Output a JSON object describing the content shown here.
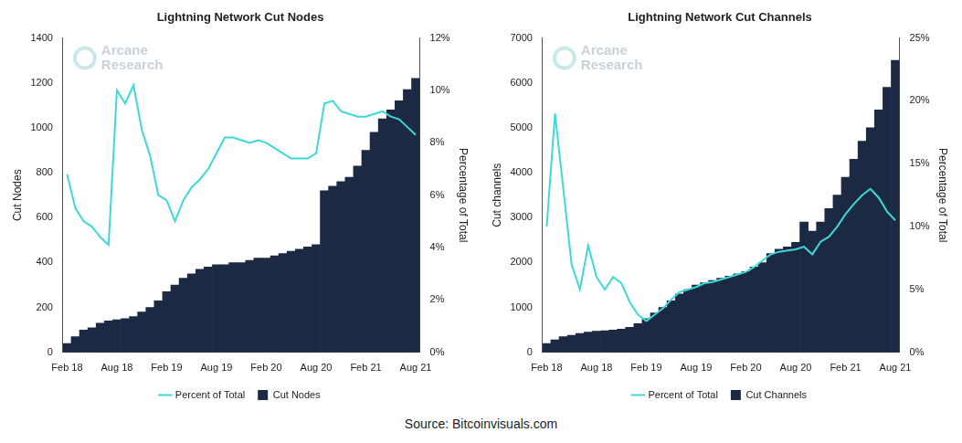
{
  "chart_data": [
    {
      "type": "bar",
      "title": "Lightning Network Cut Nodes",
      "annotations": [
        "Arcane Research"
      ],
      "categories": [
        "Feb 18",
        null,
        null,
        null,
        null,
        null,
        "Aug 18",
        null,
        null,
        null,
        null,
        null,
        "Feb 19",
        null,
        null,
        null,
        null,
        null,
        "Aug 19",
        null,
        null,
        null,
        null,
        null,
        "Feb 20",
        null,
        null,
        null,
        null,
        null,
        "Aug 20",
        null,
        null,
        null,
        null,
        null,
        "Feb 21",
        null,
        null,
        null,
        null,
        null,
        "Aug 21"
      ],
      "y_label": "Cut Nodes",
      "y2_label": "Percentage of Total",
      "series": [
        {
          "name": "Cut Nodes",
          "type": "bar",
          "color": "#1b2a42",
          "values": [
            40,
            70,
            100,
            110,
            130,
            140,
            145,
            150,
            160,
            180,
            200,
            230,
            270,
            300,
            330,
            350,
            370,
            380,
            390,
            390,
            400,
            400,
            410,
            420,
            420,
            430,
            440,
            450,
            460,
            470,
            480,
            720,
            740,
            760,
            780,
            830,
            900,
            980,
            1040,
            1080,
            1120,
            1170,
            1220
          ]
        },
        {
          "name": "Percent of Total",
          "type": "line",
          "axis": "y2",
          "color": "#3fd8d8",
          "values": [
            6.8,
            5.5,
            5.0,
            4.8,
            4.4,
            4.1,
            10.0,
            9.5,
            10.2,
            8.5,
            7.5,
            6.0,
            5.8,
            5.0,
            5.8,
            6.3,
            6.6,
            7.0,
            7.6,
            8.2,
            8.2,
            8.1,
            8.0,
            8.1,
            8.0,
            7.8,
            7.6,
            7.4,
            7.4,
            7.4,
            7.6,
            9.5,
            9.6,
            9.2,
            9.1,
            9.0,
            9.0,
            9.1,
            9.2,
            9.0,
            8.9,
            8.6,
            8.3
          ]
        }
      ],
      "ylim": [
        0,
        1400
      ],
      "yticks": [
        0,
        200,
        400,
        600,
        800,
        1000,
        1200,
        1400
      ],
      "y2lim": [
        0,
        12
      ],
      "y2ticks": [
        {
          "value": 0,
          "label": "0%"
        },
        {
          "value": 2,
          "label": "2%"
        },
        {
          "value": 4,
          "label": "4%"
        },
        {
          "value": 6,
          "label": "6%"
        },
        {
          "value": 8,
          "label": "8%"
        },
        {
          "value": 10,
          "label": "10%"
        },
        {
          "value": 12,
          "label": "12%"
        }
      ],
      "grid": false,
      "legend": "bottom"
    },
    {
      "type": "bar",
      "title": "Lightning Network Cut Channels",
      "annotations": [
        "Arcane Research"
      ],
      "categories": [
        "Feb 18",
        null,
        null,
        null,
        null,
        null,
        "Aug 18",
        null,
        null,
        null,
        null,
        null,
        "Feb 19",
        null,
        null,
        null,
        null,
        null,
        "Aug 19",
        null,
        null,
        null,
        null,
        null,
        "Feb 20",
        null,
        null,
        null,
        null,
        null,
        "Aug 20",
        null,
        null,
        null,
        null,
        null,
        "Feb 21",
        null,
        null,
        null,
        null,
        null,
        "Aug 21"
      ],
      "y_label": "Cut channels",
      "y2_label": "Percentage of Total",
      "series": [
        {
          "name": "Cut Channels",
          "type": "bar",
          "color": "#1b2a42",
          "values": [
            200,
            280,
            350,
            380,
            420,
            450,
            470,
            480,
            500,
            520,
            560,
            640,
            750,
            880,
            1000,
            1150,
            1300,
            1400,
            1500,
            1550,
            1600,
            1650,
            1700,
            1750,
            1800,
            1900,
            2000,
            2200,
            2300,
            2350,
            2450,
            2900,
            2700,
            2900,
            3200,
            3500,
            3900,
            4300,
            4700,
            5000,
            5400,
            5900,
            6500
          ]
        },
        {
          "name": "Percent of Total",
          "type": "line",
          "axis": "y2",
          "color": "#3fd8d8",
          "values": [
            10,
            19,
            13,
            7,
            5,
            8.5,
            6,
            5,
            6,
            5.5,
            4,
            3,
            2.5,
            3,
            3.5,
            4.2,
            4.8,
            5,
            5.2,
            5.5,
            5.6,
            5.8,
            6,
            6.2,
            6.4,
            6.8,
            7.3,
            7.8,
            8,
            8.1,
            8.2,
            8.4,
            7.8,
            8.8,
            9.2,
            10,
            11,
            11.8,
            12.5,
            13,
            12.3,
            11.2,
            10.5
          ]
        }
      ],
      "ylim": [
        0,
        7000
      ],
      "yticks": [
        0,
        1000,
        2000,
        3000,
        4000,
        5000,
        6000,
        7000
      ],
      "y2lim": [
        0,
        25
      ],
      "y2ticks": [
        {
          "value": 0,
          "label": "0%"
        },
        {
          "value": 5,
          "label": "5%"
        },
        {
          "value": 10,
          "label": "10%"
        },
        {
          "value": 15,
          "label": "15%"
        },
        {
          "value": 20,
          "label": "20%"
        },
        {
          "value": 25,
          "label": "25%"
        }
      ],
      "grid": false,
      "legend": "bottom"
    }
  ],
  "source": "Source: Bitcoinvisuals.com"
}
